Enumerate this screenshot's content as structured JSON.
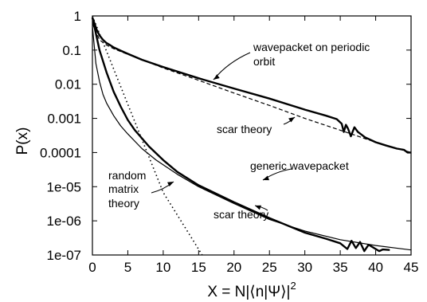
{
  "chart_data": {
    "type": "line",
    "title": "",
    "xlabel": "X = N|⟨n|Ψ⟩|",
    "xlabel_sup": "2",
    "ylabel": "P(x)",
    "xlim": [
      0,
      45
    ],
    "ylim": [
      1e-07,
      1
    ],
    "yscale": "log",
    "grid": false,
    "legend": "none",
    "x_ticks": [
      0,
      5,
      10,
      15,
      20,
      25,
      30,
      35,
      40,
      45
    ],
    "x_tick_labels": [
      "0",
      "5",
      "10",
      "15",
      "20",
      "25",
      "30",
      "35",
      "40",
      "45"
    ],
    "y_ticks": [
      1,
      0.1,
      0.01,
      0.001,
      0.0001,
      1e-05,
      1e-06,
      1e-07
    ],
    "y_tick_labels": [
      "1",
      "0.1",
      "0.01",
      "0.001",
      "0.0001",
      "1e-05",
      "1e-06",
      "1e-07"
    ],
    "series": [
      {
        "style": "thick-solid",
        "x": [
          0,
          0.3,
          0.6,
          1,
          1.5,
          2,
          2.5,
          3,
          4,
          5,
          7,
          10,
          15,
          20,
          25,
          30,
          33,
          34.5,
          35.2,
          35.5,
          35.8,
          36.1,
          36.5,
          37,
          37.5,
          38.5,
          40,
          41.5,
          43,
          44,
          44.5,
          45
        ],
        "y": [
          0.9,
          0.6,
          0.4,
          0.27,
          0.2,
          0.16,
          0.14,
          0.12,
          0.096,
          0.078,
          0.052,
          0.032,
          0.015,
          0.0075,
          0.0038,
          0.0018,
          0.0012,
          0.00095,
          0.0007,
          0.0004,
          0.00065,
          0.0005,
          0.0003,
          0.00055,
          0.0004,
          0.00028,
          0.0002,
          0.00016,
          0.00013,
          0.00012,
          0.0001,
          0.0001
        ]
      },
      {
        "style": "dashed",
        "x": [
          0,
          1,
          2,
          3,
          5,
          10,
          15,
          20,
          25,
          30,
          35,
          40,
          45
        ],
        "y": [
          0.6,
          0.2,
          0.14,
          0.11,
          0.075,
          0.03,
          0.013,
          0.0055,
          0.0024,
          0.001,
          0.00045,
          0.0002,
          0.0001
        ]
      },
      {
        "style": "thick-solid",
        "x": [
          0,
          1,
          2,
          3,
          4,
          5,
          6,
          8,
          10,
          12,
          15,
          20,
          25,
          30,
          33,
          35,
          36,
          36.6,
          37.2,
          37.8,
          38.4,
          39,
          40,
          40.5,
          41,
          42
        ],
        "y": [
          0.9,
          0.1,
          0.022,
          0.006,
          0.0022,
          0.0009,
          0.00045,
          0.00015,
          6e-05,
          2.7e-05,
          1.1e-05,
          3.5e-06,
          1.2e-06,
          4.5e-07,
          3e-07,
          2.2e-07,
          1.5e-07,
          2.6e-07,
          1.6e-07,
          2.4e-07,
          1.3e-07,
          2e-07,
          1.5e-07,
          1.3e-07,
          1.45e-07,
          1.4e-07
        ]
      },
      {
        "style": "thin-solid",
        "x": [
          0,
          0.5,
          1,
          1.5,
          2,
          3,
          4,
          5,
          7,
          9,
          12,
          15,
          20,
          25,
          30,
          35,
          40,
          45
        ],
        "y": [
          0.5,
          0.04,
          0.012,
          0.005,
          0.0028,
          0.0012,
          0.0006,
          0.00035,
          0.00013,
          6e-05,
          2.3e-05,
          1e-05,
          3.2e-06,
          1.1e-06,
          5e-07,
          2.8e-07,
          1.9e-07,
          1.4e-07
        ]
      },
      {
        "style": "dotted",
        "x": [
          0,
          5,
          10,
          15.5
        ],
        "y": [
          1,
          0.0026,
          6.8e-06,
          1e-07
        ]
      }
    ],
    "annotations": {
      "wavepacket_1": "wavepacket on periodic",
      "wavepacket_2": "orbit",
      "scar_upper": "scar theory",
      "generic": "generic wavepacket",
      "scar_lower": "scar theory",
      "random_1": "random",
      "random_2": "matrix",
      "random_3": "theory"
    }
  }
}
